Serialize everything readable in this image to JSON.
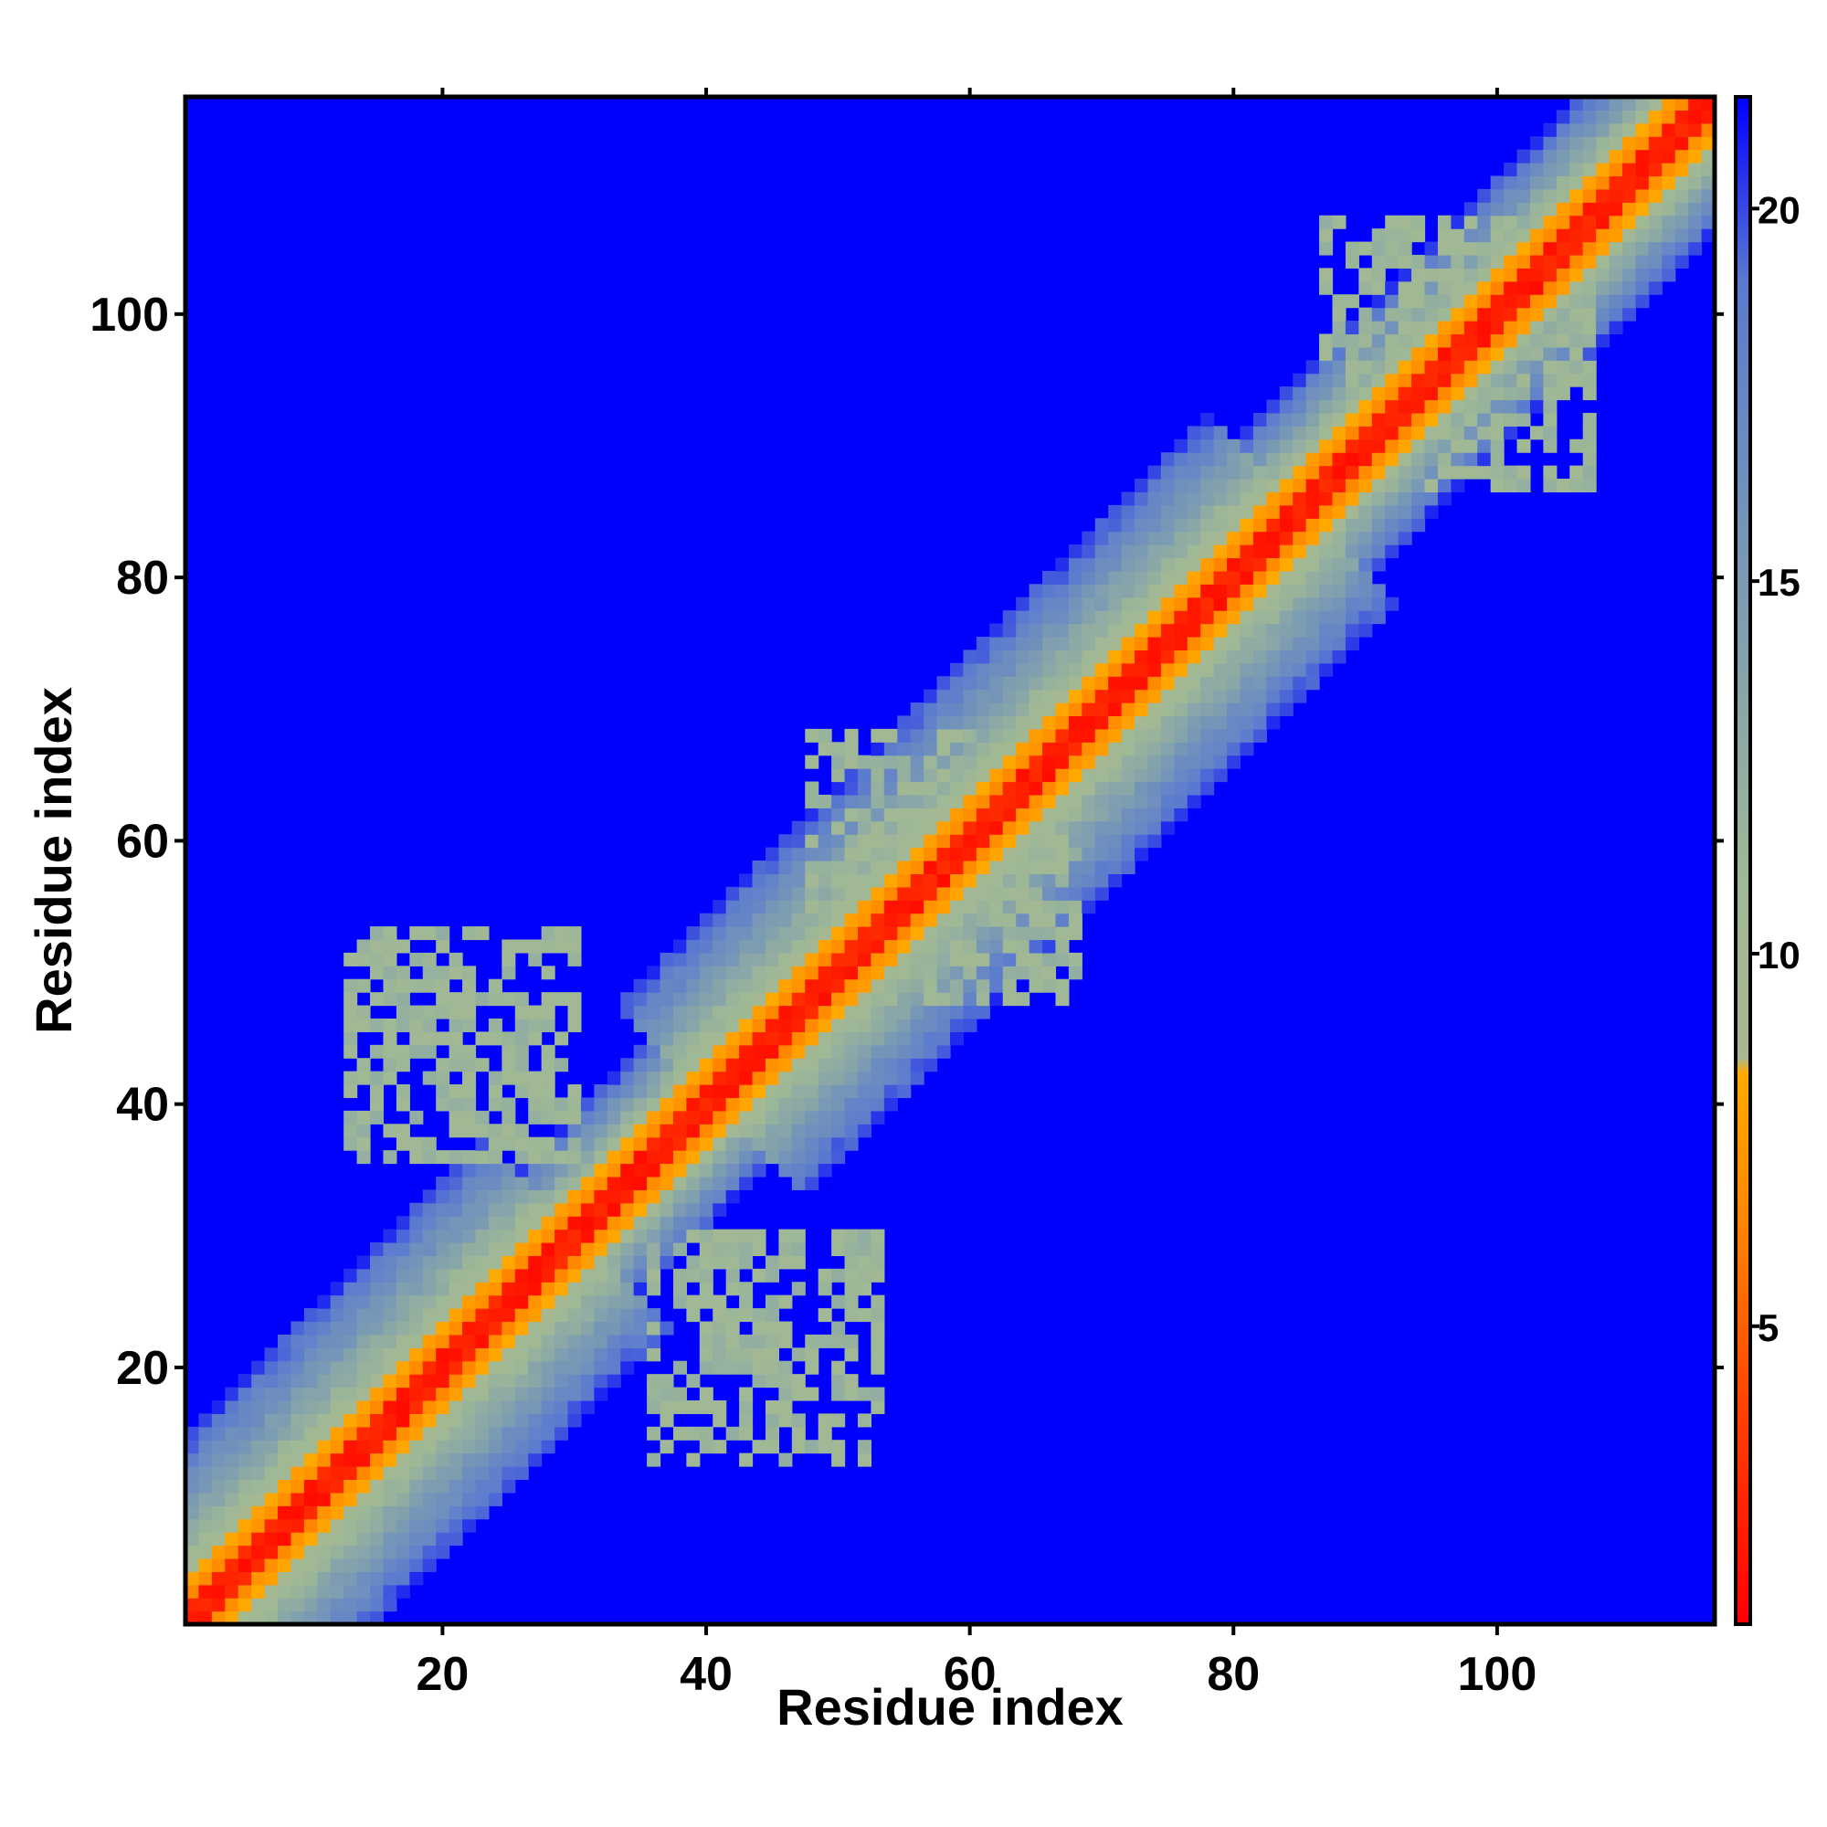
{
  "chart_data": {
    "type": "heatmap",
    "title": "",
    "xlabel": "Residue index",
    "ylabel": "Residue index",
    "n_residues": 116,
    "xlim": [
      1,
      117
    ],
    "ylim": [
      1,
      117
    ],
    "x_ticks": [
      20,
      40,
      60,
      80,
      100
    ],
    "y_ticks": [
      20,
      40,
      60,
      80,
      100
    ],
    "colorbar": {
      "range": [
        1,
        21.5
      ],
      "ticks": [
        5,
        10,
        15,
        20
      ],
      "color_stops": [
        {
          "value": 1,
          "color": "#ff0000"
        },
        {
          "value": 4,
          "color": "#ff4400"
        },
        {
          "value": 6.5,
          "color": "#ff8800"
        },
        {
          "value": 8.4,
          "color": "#ffaa00"
        },
        {
          "value": 8.6,
          "color": "#a8b890"
        },
        {
          "value": 11,
          "color": "#9fb896"
        },
        {
          "value": 15,
          "color": "#7a9ab4"
        },
        {
          "value": 19,
          "color": "#5a7ad0"
        },
        {
          "value": 21.5,
          "color": "#0000ff"
        }
      ]
    },
    "background_value": 21.5,
    "band": {
      "description_free": true,
      "segments": [
        {
          "from_index": 1,
          "to_index": 30,
          "halfwidth": 14
        },
        {
          "from_index": 30,
          "to_index": 40,
          "halfwidth": 9
        },
        {
          "from_index": 40,
          "to_index": 85,
          "halfwidth": 14
        },
        {
          "from_index": 85,
          "to_index": 117,
          "halfwidth": 10
        }
      ],
      "cap_value": 20
    },
    "contact_patches": [
      {
        "x": [
          13,
          30
        ],
        "y": [
          36,
          53
        ]
      },
      {
        "x": [
          36,
          53
        ],
        "y": [
          13,
          30
        ]
      },
      {
        "x": [
          87,
          106
        ],
        "y": [
          95,
          107
        ]
      },
      {
        "x": [
          95,
          107
        ],
        "y": [
          87,
          106
        ]
      },
      {
        "x": [
          48,
          68
        ],
        "y": [
          48,
          68
        ]
      }
    ]
  }
}
